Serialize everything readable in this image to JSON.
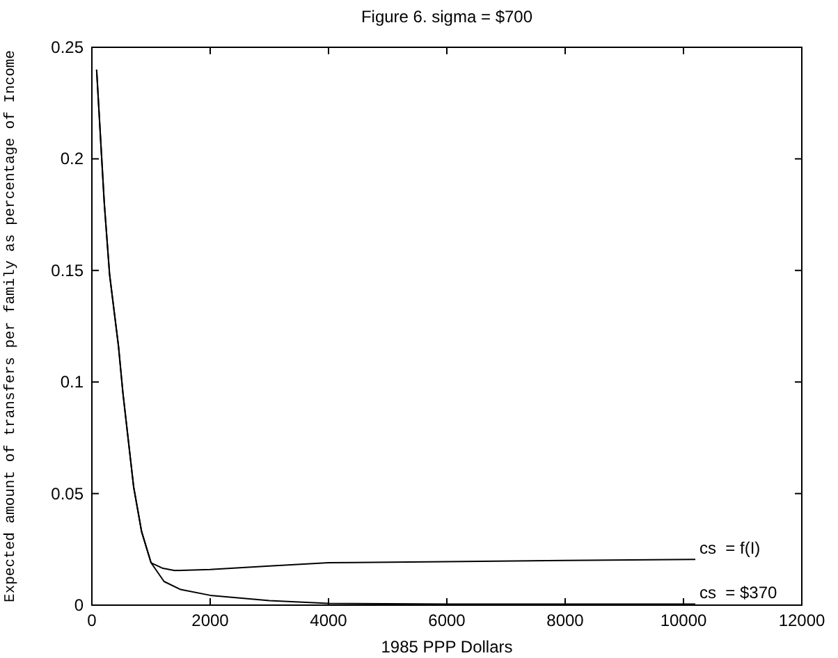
{
  "chart_data": {
    "type": "line",
    "title": "Figure 6. sigma = $700",
    "xlabel": "1985 PPP Dollars",
    "ylabel": "Expected amount of transfers per family as percentage of Income",
    "xlim": [
      0,
      12000
    ],
    "xticks": [
      0,
      2000,
      4000,
      6000,
      8000,
      10000,
      12000
    ],
    "ylim": [
      0,
      0.25
    ],
    "yticks": [
      0,
      0.05,
      0.1,
      0.15,
      0.2,
      0.25
    ],
    "grid": false,
    "series": [
      {
        "name": "cs  = f(I)",
        "color": "#000000",
        "x": [
          80,
          210,
          300,
          450,
          525,
          706,
          840,
          1000,
          1200,
          1400,
          2000,
          3000,
          4000,
          6000,
          8000,
          10200
        ],
        "values": [
          0.24,
          0.18,
          0.148,
          0.116,
          0.095,
          0.053,
          0.033,
          0.019,
          0.0165,
          0.0155,
          0.016,
          0.0175,
          0.019,
          0.0195,
          0.02,
          0.0205
        ]
      },
      {
        "name": "cs  = $370",
        "color": "#000000",
        "x": [
          80,
          210,
          300,
          450,
          525,
          706,
          840,
          1000,
          1220,
          1500,
          2000,
          3000,
          4000,
          6000,
          8000,
          10200
        ],
        "values": [
          0.24,
          0.18,
          0.148,
          0.116,
          0.095,
          0.053,
          0.033,
          0.019,
          0.0106,
          0.007,
          0.0044,
          0.002,
          0.0008,
          0.0005,
          0.0005,
          0.0005
        ]
      }
    ]
  }
}
